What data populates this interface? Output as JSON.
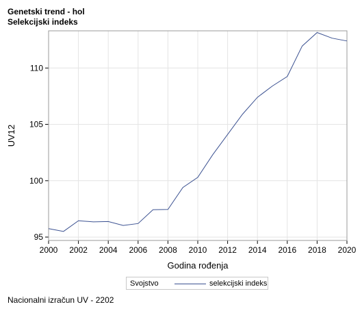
{
  "header": {
    "title": "Genetski trend - hol",
    "subtitle": "Selekcijski indeks"
  },
  "chart_data": {
    "type": "line",
    "title": "Genetski trend - hol",
    "subtitle": "Selekcijski indeks",
    "xlabel": "Godina rođenja",
    "ylabel": "UV12",
    "xlim": [
      2000,
      2020
    ],
    "ylim": [
      94.7,
      113.3
    ],
    "x_ticks": [
      "2000",
      "2002",
      "2004",
      "2006",
      "2008",
      "2010",
      "2012",
      "2014",
      "2016",
      "2018",
      "2020"
    ],
    "y_ticks": [
      "95",
      "100",
      "105",
      "110"
    ],
    "grid": true,
    "legend_title": "Svojstvo",
    "legend_position": "bottom",
    "line_color": "#3b5191",
    "x": [
      2000,
      2001,
      2002,
      2003,
      2004,
      2005,
      2006,
      2007,
      2008,
      2009,
      2010,
      2011,
      2012,
      2013,
      2014,
      2015,
      2016,
      2017,
      2018,
      2019,
      2020
    ],
    "series": [
      {
        "name": "selekcijski indeks",
        "values": [
          95.75,
          95.5,
          96.45,
          96.35,
          96.38,
          96.03,
          96.2,
          97.43,
          97.45,
          99.4,
          100.3,
          102.3,
          104.1,
          105.9,
          107.4,
          108.4,
          109.25,
          111.95,
          113.15,
          112.65,
          112.4
        ]
      }
    ]
  },
  "footnote": "Nacionalni izračun UV - 2202"
}
